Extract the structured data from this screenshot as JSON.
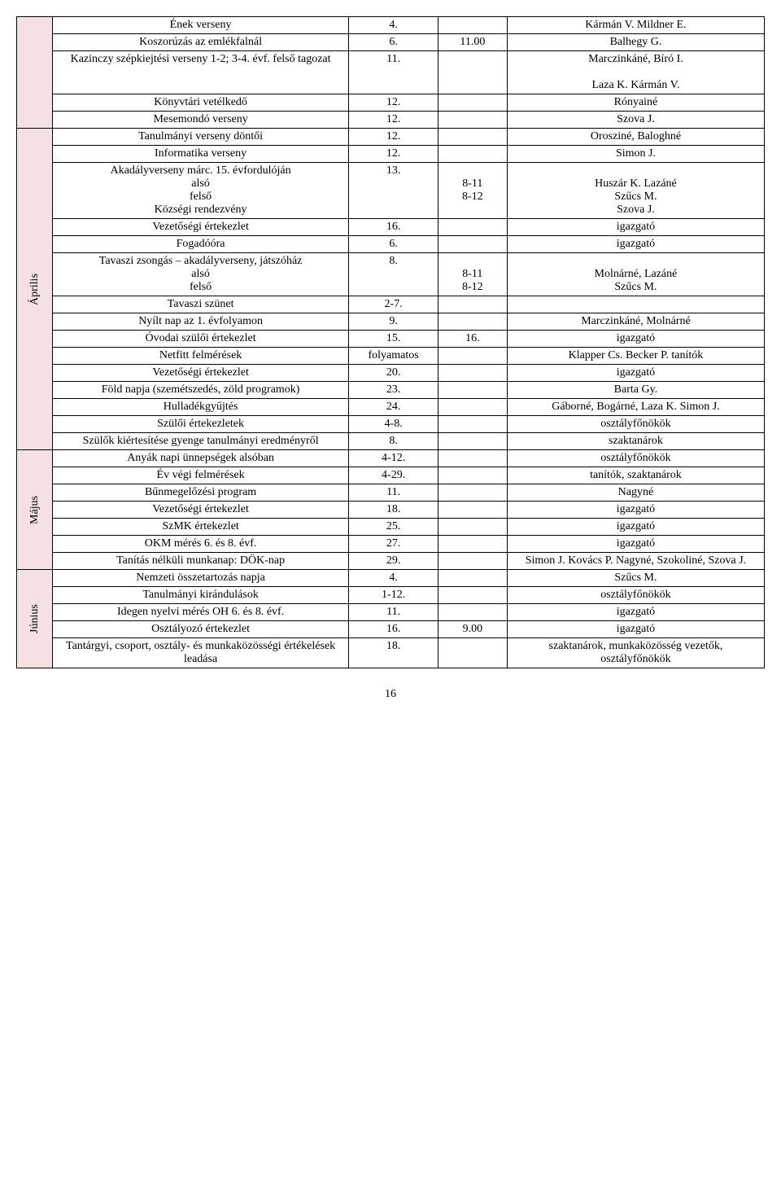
{
  "page_number": "16",
  "colors": {
    "month_bg": "#f5e1e1",
    "border": "#000000",
    "text": "#000000",
    "background": "#ffffff"
  },
  "rows": [
    {
      "month": "",
      "month_rowspan": 5,
      "month_blank": true,
      "event": "Ének verseny",
      "date": "4.",
      "time": "",
      "resp": "Kármán V. Mildner E."
    },
    {
      "event": "Koszorúzás az emlékfalnál",
      "date": "6.",
      "time": "11.00",
      "resp": "Balhegy G."
    },
    {
      "event": "Kazinczy szépkiejtési verseny 1-2; 3-4. évf. felső tagozat",
      "date": "11.",
      "time": "",
      "resp": "Marczinkáné, Bíró I.\n\nLaza K. Kármán V."
    },
    {
      "event": "Könyvtári vetélkedő",
      "date": "12.",
      "time": "",
      "resp": "Rónyainé"
    },
    {
      "event": "Mesemondó verseny",
      "date": "12.",
      "time": "",
      "resp": "Szova J."
    },
    {
      "month": "Április",
      "month_rowspan": 15,
      "event": "Tanulmányi verseny döntői",
      "date": "12.",
      "time": "",
      "resp": "Orosziné, Baloghné"
    },
    {
      "event": "Informatika verseny",
      "date": "12.",
      "time": "",
      "resp": "Simon J."
    },
    {
      "event": "Akadályverseny márc. 15. évfordulóján\nalsó\nfelső\nKözségi rendezvény",
      "date": "13.",
      "time": "\n8-11\n8-12",
      "resp": "\nHuszár K. Lazáné\nSzűcs M.\nSzova J."
    },
    {
      "event": "Vezetőségi értekezlet",
      "date": "16.",
      "time": "",
      "resp": "igazgató"
    },
    {
      "event": "Fogadóóra",
      "date": "6.",
      "time": "",
      "resp": "igazgató"
    },
    {
      "event": "Tavaszi zsongás – akadályverseny, játszóház\nalsó\nfelső",
      "date": "8.",
      "time": "\n8-11\n8-12",
      "resp": "\nMolnárné, Lazáné\nSzűcs M."
    },
    {
      "event": "Tavaszi szünet",
      "date": "2-7.",
      "time": "",
      "resp": ""
    },
    {
      "event": "Nyílt nap az 1. évfolyamon",
      "date": "9.",
      "time": "",
      "resp": "Marczinkáné, Molnárné"
    },
    {
      "event": "Óvodai szülői értekezlet",
      "date": "15.",
      "time": "16.",
      "resp": "igazgató"
    },
    {
      "event": "Netfitt felmérések",
      "date": "folyamatos",
      "time": "",
      "resp": "Klapper Cs. Becker P. tanítók"
    },
    {
      "event": "Vezetőségi értekezlet",
      "date": "20.",
      "time": "",
      "resp": "igazgató"
    },
    {
      "event": "Föld napja (szemétszedés, zöld programok)",
      "date": "23.",
      "time": "",
      "resp": "Barta Gy."
    },
    {
      "event": "Hulladékgyűjtés",
      "date": "24.",
      "time": "",
      "resp": "Gáborné, Bogárné, Laza K. Simon J."
    },
    {
      "event": "Szülői értekezletek",
      "date": "4-8.",
      "time": "",
      "resp": "osztályfőnökök"
    },
    {
      "event": "Szülők kiértesítése gyenge tanulmányi eredményről",
      "date": "8.",
      "time": "",
      "resp": "szaktanárok"
    },
    {
      "month": "Május",
      "month_rowspan": 7,
      "event": "Anyák napi ünnepségek alsóban",
      "date": "4-12.",
      "time": "",
      "resp": "osztályfőnökök"
    },
    {
      "event": "Év végi felmérések",
      "date": "4-29.",
      "time": "",
      "resp": "tanítók, szaktanárok"
    },
    {
      "event": "Bűnmegelőzési program",
      "date": "11.",
      "time": "",
      "resp": "Nagyné"
    },
    {
      "event": "Vezetőségi értekezlet",
      "date": "18.",
      "time": "",
      "resp": "igazgató"
    },
    {
      "event": "SzMK értekezlet",
      "date": "25.",
      "time": "",
      "resp": "igazgató"
    },
    {
      "event": "OKM mérés 6. és 8. évf.",
      "date": "27.",
      "time": "",
      "resp": "igazgató"
    },
    {
      "event": "Tanítás nélküli munkanap: DÖK-nap",
      "date": "29.",
      "time": "",
      "resp": "Simon J. Kovács P. Nagyné, Szokoliné, Szova J."
    },
    {
      "month": "Június",
      "month_rowspan": 5,
      "event": "Nemzeti összetartozás napja",
      "date": "4.",
      "time": "",
      "resp": "Szűcs M."
    },
    {
      "event": "Tanulmányi kirándulások",
      "date": "1-12.",
      "time": "",
      "resp": "osztályfőnökök"
    },
    {
      "event": "Idegen nyelvi mérés OH 6. és 8. évf.",
      "date": "11.",
      "time": "",
      "resp": "igazgató"
    },
    {
      "event": "Osztályozó értekezlet",
      "date": "16.",
      "time": "9.00",
      "resp": "igazgató"
    },
    {
      "event": "Tantárgyi, csoport, osztály- és munkaközösségi értékelések leadása",
      "date": "18.",
      "time": "",
      "resp": "szaktanárok, munkaközösség vezetők, osztályfőnökök"
    }
  ]
}
